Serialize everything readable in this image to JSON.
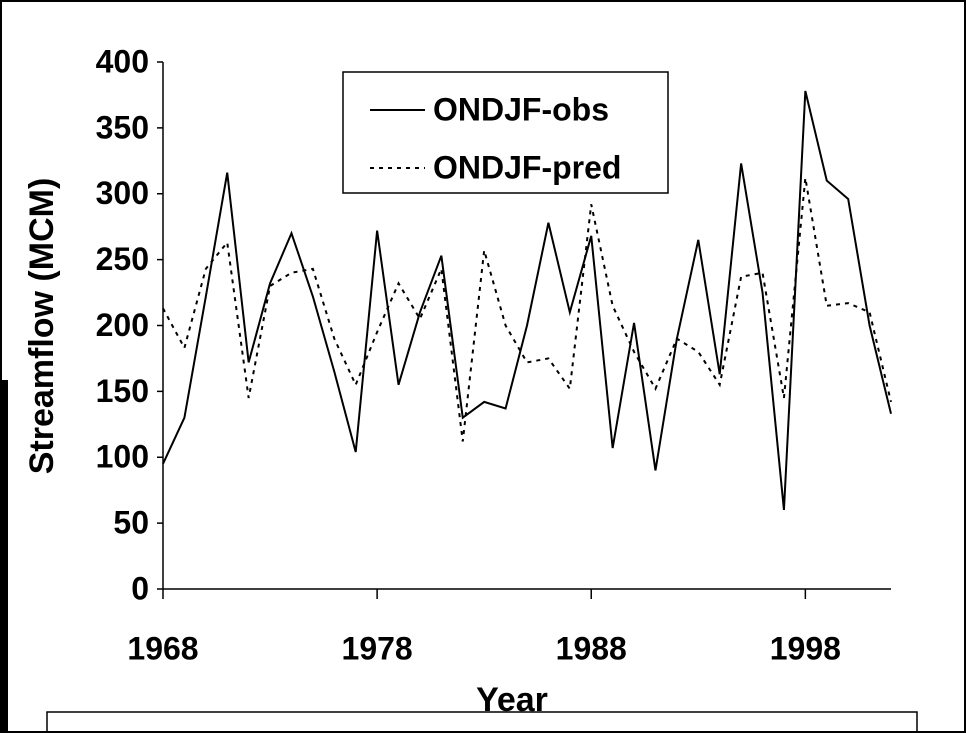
{
  "chart_data": {
    "type": "line",
    "x": [
      1968,
      1969,
      1970,
      1971,
      1972,
      1973,
      1974,
      1975,
      1976,
      1977,
      1978,
      1979,
      1980,
      1981,
      1982,
      1983,
      1984,
      1985,
      1986,
      1987,
      1988,
      1989,
      1990,
      1991,
      1992,
      1993,
      1994,
      1995,
      1996,
      1997,
      1998,
      1999,
      2000,
      2001,
      2002
    ],
    "series": [
      {
        "name": "ONDJF-obs",
        "color": "#000000",
        "style": "solid",
        "values": [
          95,
          130,
          222,
          316,
          172,
          232,
          270,
          222,
          165,
          104,
          272,
          155,
          210,
          253,
          130,
          142,
          137,
          200,
          278,
          210,
          268,
          107,
          202,
          90,
          190,
          265,
          163,
          323,
          225,
          60,
          378,
          310,
          296,
          200,
          133
        ]
      },
      {
        "name": "ONDJF-pred",
        "color": "#000000",
        "style": "dotted",
        "values": [
          213,
          183,
          243,
          263,
          145,
          230,
          240,
          243,
          190,
          155,
          195,
          232,
          205,
          243,
          112,
          257,
          200,
          172,
          175,
          152,
          292,
          215,
          180,
          152,
          190,
          180,
          155,
          237,
          240,
          145,
          312,
          215,
          217,
          210,
          142
        ]
      }
    ],
    "xlabel": "Year",
    "ylabel": "Streamflow (MCM)",
    "xlim": [
      1968,
      2002
    ],
    "xticks": [
      1968,
      1978,
      1988,
      1998
    ],
    "ylim": [
      0,
      400
    ],
    "yticks": [
      0,
      50,
      100,
      150,
      200,
      250,
      300,
      350,
      400
    ],
    "grid": false,
    "legend": "top-center"
  }
}
